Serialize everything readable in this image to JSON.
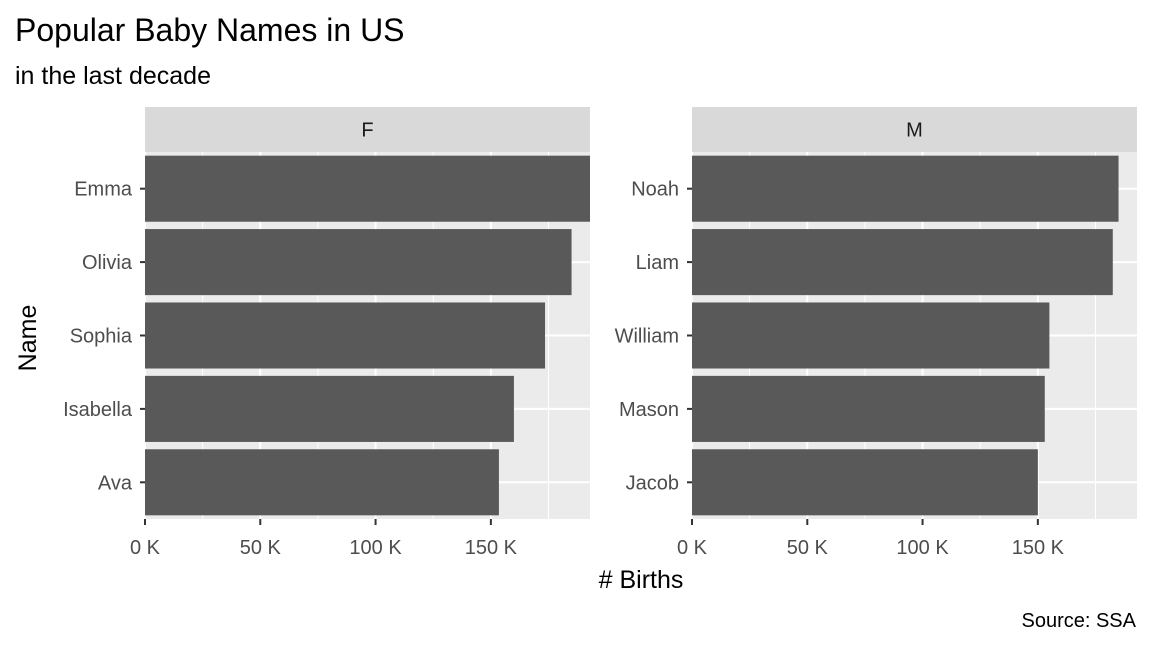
{
  "chart_data": {
    "type": "bar",
    "orientation": "horizontal",
    "title": "Popular Baby Names in US",
    "subtitle": "in the last decade",
    "xlabel": "# Births",
    "ylabel": "Name",
    "caption": "Source: SSA",
    "xlim": [
      0,
      193000
    ],
    "x_ticks": [
      0,
      50000,
      100000,
      150000
    ],
    "x_tick_labels": [
      "0 K",
      "50 K",
      "100 K",
      "150 K"
    ],
    "grid": true,
    "legend": "none",
    "panels": [
      {
        "strip": "F",
        "categories": [
          "Emma",
          "Olivia",
          "Sophia",
          "Isabella",
          "Ava"
        ],
        "values": [
          193000,
          185000,
          173500,
          160000,
          153500
        ]
      },
      {
        "strip": "M",
        "categories": [
          "Noah",
          "Liam",
          "William",
          "Mason",
          "Jacob"
        ],
        "values": [
          185000,
          182500,
          155000,
          153000,
          150000
        ]
      }
    ],
    "colors": {
      "bar": "#595959",
      "panel_bg": "#ebebeb",
      "strip_bg": "#d9d9d9",
      "grid": "#ffffff"
    }
  }
}
